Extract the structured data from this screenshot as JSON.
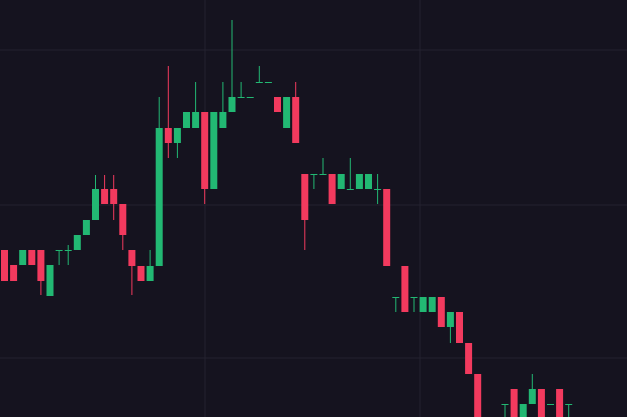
{
  "chart_data": {
    "type": "candlestick",
    "ylim": [
      0,
      417
    ],
    "up_color": "#22b873",
    "down_color": "#f23a5e",
    "open": [
      167,
      152,
      152,
      167,
      167,
      121,
      167,
      167,
      167,
      182,
      197,
      228,
      228,
      213,
      167,
      151,
      136,
      151,
      289,
      274,
      289,
      289,
      305,
      228,
      289,
      305,
      320,
      320,
      335,
      335,
      320,
      289,
      320,
      243,
      243,
      243,
      243,
      228,
      228,
      228,
      228,
      228,
      228,
      120,
      151,
      120,
      105,
      105,
      120,
      90,
      105,
      74,
      43,
      null,
      null,
      13,
      28,
      0,
      13,
      28,
      13,
      28,
      13
    ],
    "high": [
      167,
      152,
      167,
      167,
      167,
      152,
      167,
      172,
      182,
      197,
      242,
      242,
      242,
      213,
      167,
      151,
      167,
      320,
      351,
      289,
      305,
      335,
      305,
      305,
      335,
      397,
      335,
      320,
      351,
      335,
      320,
      320,
      335,
      243,
      243,
      259,
      243,
      243,
      259,
      243,
      243,
      243,
      228,
      120,
      151,
      120,
      120,
      120,
      120,
      105,
      105,
      74,
      43,
      null,
      null,
      13,
      28,
      13,
      43,
      28,
      13,
      28,
      13
    ],
    "low": [
      136,
      136,
      152,
      152,
      122,
      121,
      152,
      152,
      167,
      182,
      197,
      213,
      197,
      167,
      122,
      136,
      136,
      151,
      259,
      259,
      289,
      289,
      213,
      228,
      289,
      305,
      320,
      320,
      335,
      335,
      305,
      289,
      274,
      167,
      228,
      243,
      213,
      228,
      228,
      228,
      228,
      213,
      151,
      105,
      105,
      105,
      105,
      105,
      90,
      74,
      74,
      43,
      0,
      null,
      null,
      0,
      0,
      0,
      13,
      0,
      13,
      0,
      0
    ],
    "close": [
      136,
      136,
      167,
      152,
      136,
      152,
      167,
      167,
      182,
      197,
      228,
      213,
      213,
      182,
      151,
      136,
      151,
      289,
      274,
      289,
      305,
      305,
      228,
      305,
      305,
      320,
      320,
      320,
      335,
      335,
      305,
      320,
      274,
      197,
      243,
      243,
      213,
      243,
      228,
      243,
      243,
      228,
      151,
      120,
      105,
      120,
      120,
      120,
      90,
      105,
      74,
      43,
      0,
      null,
      null,
      13,
      0,
      13,
      28,
      0,
      13,
      0,
      13
    ]
  }
}
